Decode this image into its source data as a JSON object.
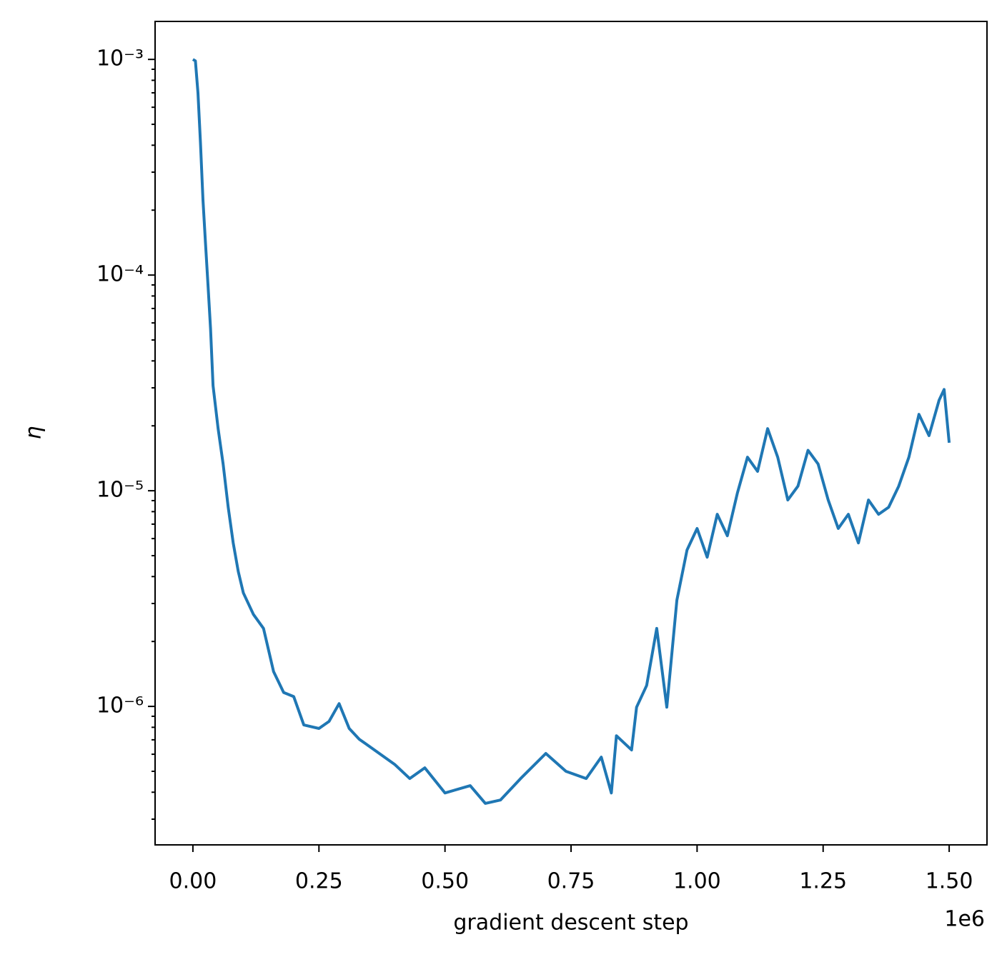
{
  "chart_data": {
    "type": "line",
    "xlabel": "gradient descent step",
    "ylabel": "η",
    "x_offset_label": "1e6",
    "log_y": true,
    "series": [
      {
        "name": "η",
        "color": "#1f77b4",
        "x": [
          0,
          5000,
          10000,
          15000,
          20000,
          25000,
          30000,
          35000,
          40000,
          50000,
          60000,
          70000,
          80000,
          90000,
          100000,
          120000,
          140000,
          160000,
          180000,
          200000,
          220000,
          250000,
          270000,
          290000,
          310000,
          330000,
          360000,
          400000,
          430000,
          460000,
          500000,
          550000,
          580000,
          610000,
          650000,
          700000,
          740000,
          780000,
          810000,
          830000,
          840000,
          870000,
          880000,
          900000,
          920000,
          940000,
          960000,
          980000,
          1000000,
          1020000,
          1040000,
          1060000,
          1080000,
          1100000,
          1120000,
          1140000,
          1160000,
          1180000,
          1200000,
          1220000,
          1240000,
          1260000,
          1280000,
          1300000,
          1320000,
          1340000,
          1360000,
          1380000,
          1400000,
          1420000,
          1440000,
          1460000,
          1480000,
          1490000,
          1500000
        ],
        "values": [
          0.001,
          0.000985,
          0.000699,
          0.00041,
          0.000223,
          0.000141,
          8.92e-05,
          5.64e-05,
          3.07e-05,
          1.94e-05,
          1.33e-05,
          8.39e-06,
          5.73e-06,
          4.22e-06,
          3.36e-06,
          2.67e-06,
          2.3e-06,
          1.45e-06,
          1.16e-06,
          1.11e-06,
          8.2e-07,
          7.9e-07,
          8.52e-07,
          1.03e-06,
          7.9e-07,
          7.04e-07,
          6.28e-07,
          5.39e-07,
          4.63e-07,
          5.19e-07,
          3.97e-07,
          4.29e-07,
          3.55e-07,
          3.68e-07,
          4.63e-07,
          6.05e-07,
          5e-07,
          4.63e-07,
          5.82e-07,
          3.97e-07,
          7.31e-07,
          6.28e-07,
          9.92e-07,
          1.25e-06,
          2.3e-06,
          9.92e-07,
          3.11e-06,
          5.31e-06,
          6.68e-06,
          4.92e-06,
          7.78e-06,
          6.18e-06,
          9.77e-06,
          1.43e-05,
          1.23e-05,
          1.94e-05,
          1.43e-05,
          9.06e-06,
          1.05e-05,
          1.54e-05,
          1.33e-05,
          9.06e-06,
          6.68e-06,
          7.78e-06,
          5.73e-06,
          9.06e-06,
          7.78e-06,
          8.39e-06,
          1.05e-05,
          1.43e-05,
          2.26e-05,
          1.8e-05,
          2.63e-05,
          2.95e-05,
          1.67e-05
        ]
      }
    ],
    "xlim": [
      -75000,
      1575000
    ],
    "xticks": [
      {
        "value": 0,
        "label": "0.00"
      },
      {
        "value": 250000,
        "label": "0.25"
      },
      {
        "value": 500000,
        "label": "0.50"
      },
      {
        "value": 750000,
        "label": "0.75"
      },
      {
        "value": 1000000,
        "label": "1.00"
      },
      {
        "value": 1250000,
        "label": "1.25"
      },
      {
        "value": 1500000,
        "label": "1.50"
      }
    ],
    "ylim": [
      2.28e-07,
      0.0015
    ],
    "yticks": [
      {
        "value": 1e-06,
        "label": "10⁻⁶"
      },
      {
        "value": 1e-05,
        "label": "10⁻⁵"
      },
      {
        "value": 0.0001,
        "label": "10⁻⁴"
      },
      {
        "value": 0.001,
        "label": "10⁻³"
      }
    ],
    "yminorticks": [
      3e-07,
      4e-07,
      5e-07,
      6e-07,
      7e-07,
      8e-07,
      9e-07,
      2e-06,
      3e-06,
      4e-06,
      5e-06,
      6e-06,
      7e-06,
      8e-06,
      9e-06,
      2e-05,
      3e-05,
      4e-05,
      5e-05,
      6e-05,
      7e-05,
      8e-05,
      9e-05,
      0.0002,
      0.0003,
      0.0004,
      0.0005,
      0.0006,
      0.0007,
      0.0008,
      0.0009
    ]
  }
}
